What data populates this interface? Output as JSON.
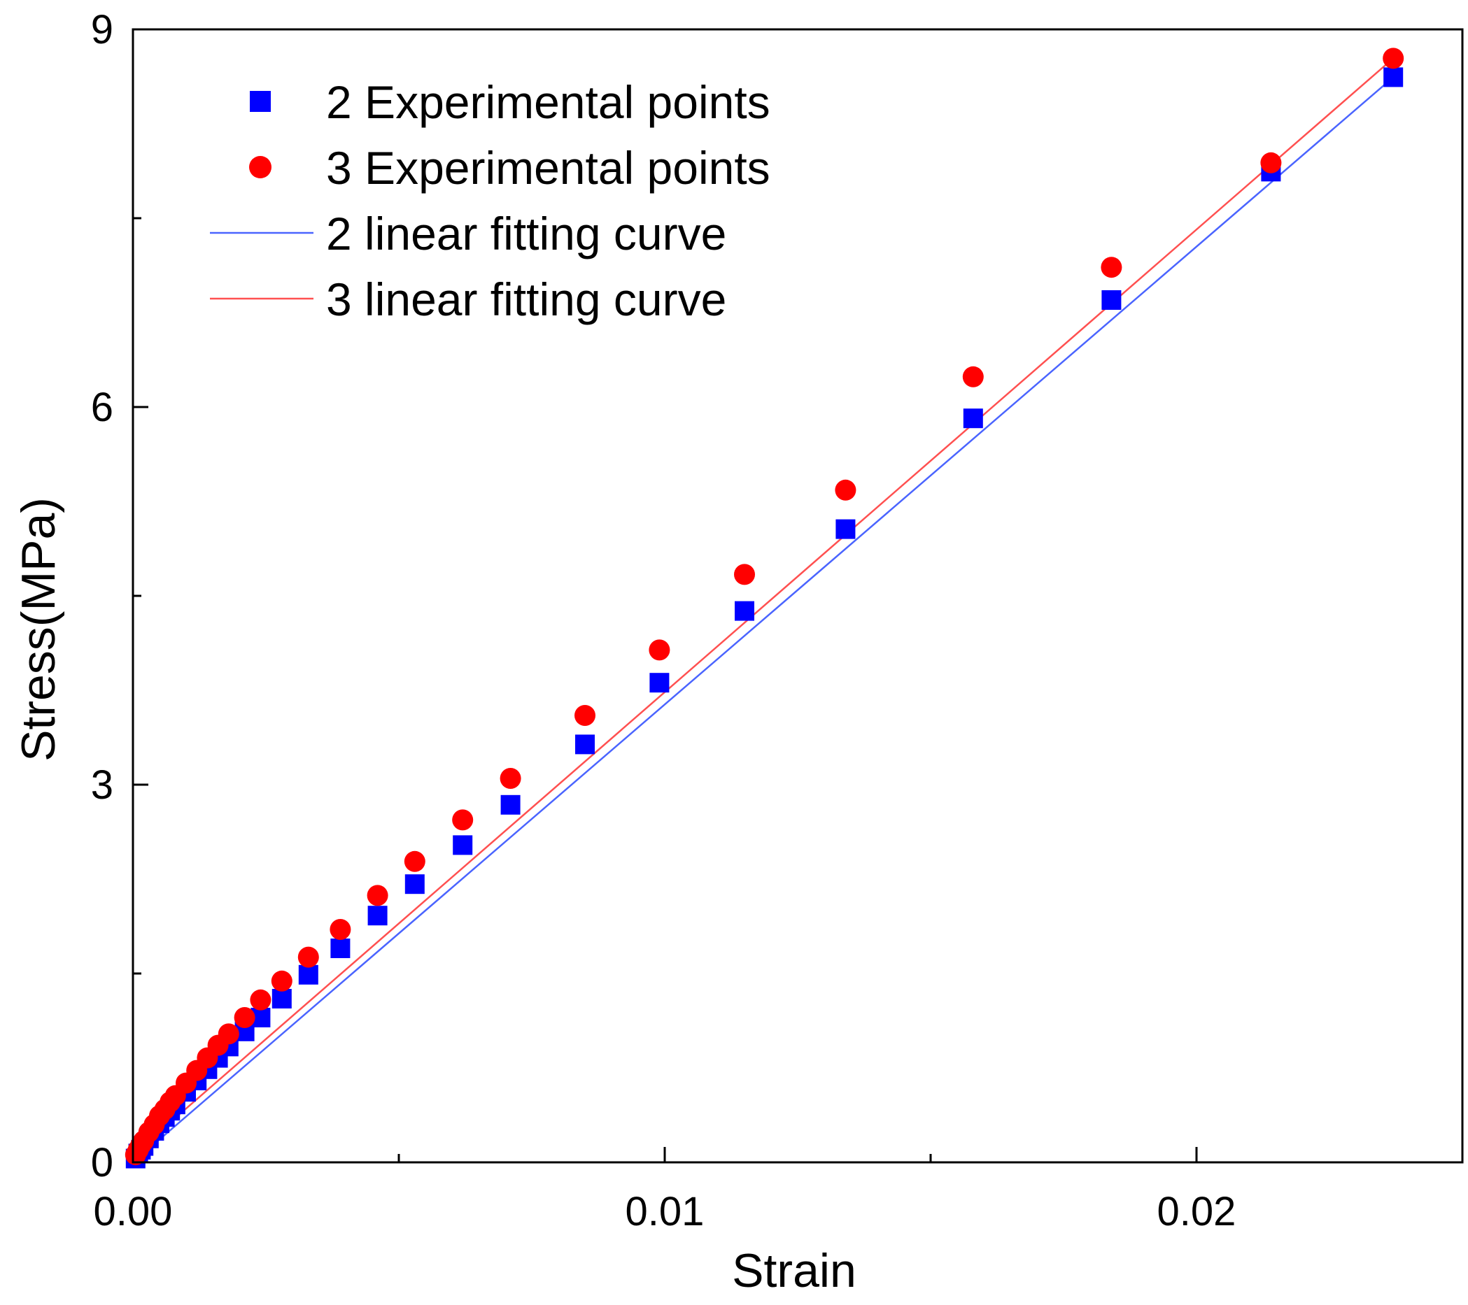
{
  "chart_data": {
    "type": "scatter",
    "title": "",
    "xlabel": "Strain",
    "ylabel": "Stress(MPa)",
    "xlim": [
      0,
      0.025
    ],
    "ylim": [
      0,
      9
    ],
    "x_ticks": [
      {
        "value": 0.0,
        "label": "0.00"
      },
      {
        "value": 0.01,
        "label": "0.01"
      },
      {
        "value": 0.02,
        "label": "0.02"
      }
    ],
    "x_minor_ticks": [
      0.005,
      0.015
    ],
    "y_ticks": [
      {
        "value": 0,
        "label": "0"
      },
      {
        "value": 3,
        "label": "3"
      },
      {
        "value": 6,
        "label": "6"
      },
      {
        "value": 9,
        "label": "9"
      }
    ],
    "y_minor_ticks": [
      1.5,
      4.5,
      7.5
    ],
    "grid": false,
    "legend_position": "top-left",
    "series": [
      {
        "name": "2 Experimental points",
        "kind": "points",
        "marker": "square",
        "color": "#0000ff",
        "x": [
          5e-05,
          0.0001,
          0.00015,
          0.0002,
          0.0003,
          0.0004,
          0.0005,
          0.0006,
          0.0007,
          0.0008,
          0.001,
          0.0012,
          0.0014,
          0.0016,
          0.0018,
          0.0021,
          0.0024,
          0.0028,
          0.0033,
          0.0039,
          0.0046,
          0.0053,
          0.0062,
          0.0071,
          0.0085,
          0.0099,
          0.0115,
          0.0134,
          0.0158,
          0.0184,
          0.0214,
          0.0237
        ],
        "y": [
          0.03,
          0.07,
          0.1,
          0.13,
          0.19,
          0.25,
          0.31,
          0.36,
          0.41,
          0.46,
          0.56,
          0.65,
          0.74,
          0.83,
          0.92,
          1.04,
          1.15,
          1.3,
          1.49,
          1.7,
          1.96,
          2.21,
          2.52,
          2.84,
          3.32,
          3.81,
          4.38,
          5.03,
          5.91,
          6.85,
          7.87,
          8.62
        ]
      },
      {
        "name": "3 Experimental points",
        "kind": "points",
        "marker": "circle",
        "color": "#ff0000",
        "x": [
          5e-05,
          0.0001,
          0.00015,
          0.0002,
          0.0003,
          0.0004,
          0.0005,
          0.0006,
          0.0007,
          0.0008,
          0.001,
          0.0012,
          0.0014,
          0.0016,
          0.0018,
          0.0021,
          0.0024,
          0.0028,
          0.0033,
          0.0039,
          0.0046,
          0.0053,
          0.0062,
          0.0071,
          0.0085,
          0.0099,
          0.0115,
          0.0134,
          0.0158,
          0.0184,
          0.0214,
          0.0237
        ],
        "y": [
          0.06,
          0.1,
          0.14,
          0.17,
          0.24,
          0.3,
          0.37,
          0.42,
          0.48,
          0.53,
          0.63,
          0.73,
          0.83,
          0.93,
          1.02,
          1.15,
          1.29,
          1.44,
          1.63,
          1.85,
          2.12,
          2.39,
          2.72,
          3.05,
          3.55,
          4.07,
          4.67,
          5.34,
          6.24,
          7.11,
          7.94,
          8.77
        ]
      },
      {
        "name": "2 linear fitting curve",
        "kind": "line",
        "color": "#4a64ff",
        "x": [
          0.0,
          0.0237
        ],
        "y": [
          0.0,
          8.62
        ]
      },
      {
        "name": "3 linear fitting curve",
        "kind": "line",
        "color": "#ff5050",
        "x": [
          0.0,
          0.0237
        ],
        "y": [
          0.06,
          8.77
        ]
      }
    ]
  }
}
